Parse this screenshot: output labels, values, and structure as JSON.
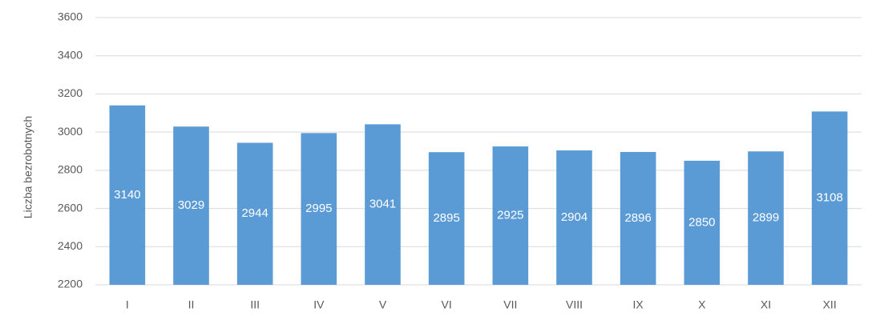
{
  "chart_data": {
    "type": "bar",
    "y_label": "Liczba bezrobotnych",
    "categories": [
      "I",
      "II",
      "III",
      "IV",
      "V",
      "VI",
      "VII",
      "VIII",
      "IX",
      "X",
      "XI",
      "XII"
    ],
    "values": [
      3140,
      3029,
      2944,
      2995,
      3041,
      2895,
      2925,
      2904,
      2896,
      2850,
      2899,
      3108
    ],
    "color": "#5b9bd5",
    "ylim": [
      2200,
      3600
    ],
    "yticks": [
      2200,
      2400,
      2600,
      2800,
      3000,
      3200,
      3400,
      3600
    ],
    "grid": true
  }
}
